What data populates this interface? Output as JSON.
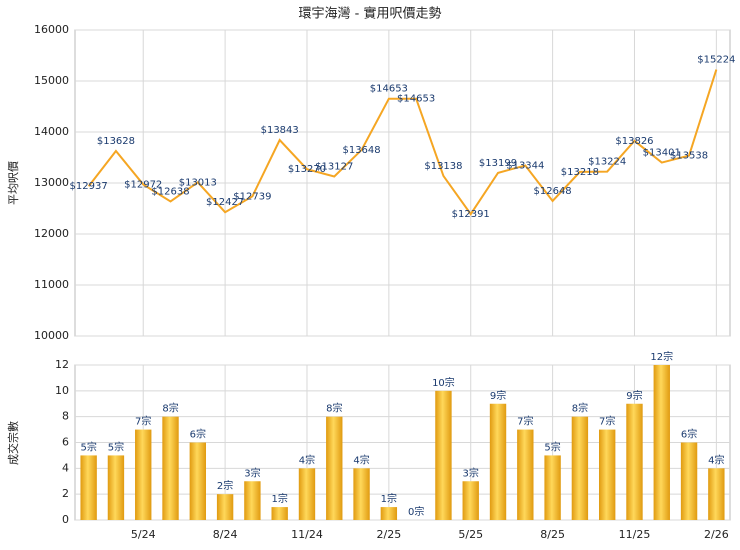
{
  "chart_data": [
    {
      "type": "line",
      "title": "環宇海灣 - 實用呎價走勢",
      "y_label": "平均呎價",
      "color": "#f5a623",
      "values": [
        12937,
        13628,
        12972,
        12638,
        13013,
        12427,
        12739,
        13843,
        13270,
        13127,
        13648,
        14653,
        14653,
        13138,
        12391,
        13199,
        13344,
        12648,
        13218,
        13224,
        13826,
        13401,
        13538,
        15224
      ],
      "value_labels": [
        "$12937",
        "$13628",
        "$12972",
        "$12638",
        "$13013",
        "$12427",
        "$12739",
        "$13843",
        "$13270",
        "$13127",
        "$13648",
        "$14653",
        "$14653",
        "$13138",
        "$12391",
        "$13199",
        "$13344",
        "$12648",
        "$13218",
        "$13224",
        "$13826",
        "$13401",
        "$13538",
        "$15224"
      ],
      "ylim": [
        10000,
        16000
      ],
      "yticks": [
        10000,
        11000,
        12000,
        13000,
        14000,
        15000,
        16000
      ],
      "grid": true
    },
    {
      "type": "bar",
      "y_label": "成交宗數",
      "color": "#f2b227",
      "categories": [
        null,
        null,
        "5/24",
        null,
        null,
        "8/24",
        null,
        null,
        "11/24",
        null,
        null,
        "2/25",
        null,
        null,
        "5/25",
        null,
        null,
        "8/25",
        null,
        null,
        "11/25",
        null,
        null,
        "2/26"
      ],
      "values": [
        5,
        5,
        7,
        8,
        6,
        2,
        3,
        1,
        4,
        8,
        4,
        1,
        0,
        10,
        3,
        9,
        7,
        5,
        8,
        7,
        9,
        12,
        6,
        4
      ],
      "value_labels": [
        "5宗",
        "5宗",
        "7宗",
        "8宗",
        "6宗",
        "2宗",
        "3宗",
        "1宗",
        "4宗",
        "8宗",
        "4宗",
        "1宗",
        "0宗",
        "10宗",
        "3宗",
        "9宗",
        "7宗",
        "5宗",
        "8宗",
        "7宗",
        "9宗",
        "12宗",
        "6宗",
        "4宗"
      ],
      "ylim": [
        0,
        12
      ],
      "yticks": [
        0,
        2,
        4,
        6,
        8,
        10,
        12
      ],
      "grid": true
    }
  ]
}
